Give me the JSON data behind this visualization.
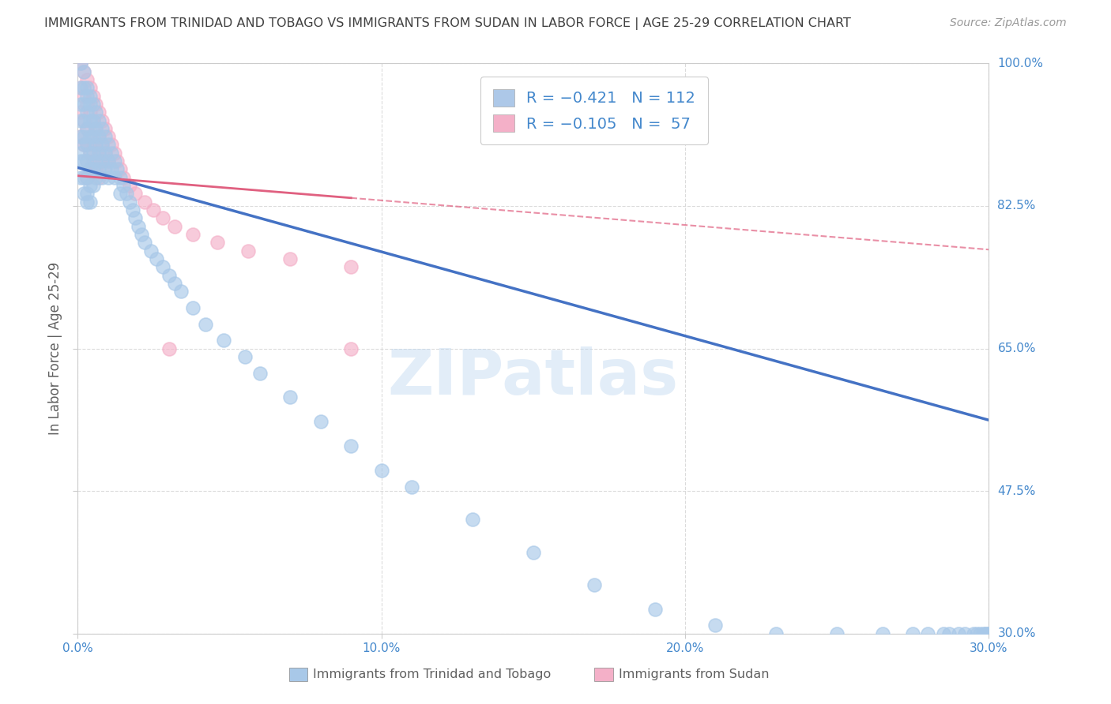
{
  "title": "IMMIGRANTS FROM TRINIDAD AND TOBAGO VS IMMIGRANTS FROM SUDAN IN LABOR FORCE | AGE 25-29 CORRELATION CHART",
  "source": "Source: ZipAtlas.com",
  "ylabel": "In Labor Force | Age 25-29",
  "xlim": [
    0.0,
    0.3
  ],
  "ylim": [
    0.3,
    1.0
  ],
  "xtick_labels": [
    "0.0%",
    "10.0%",
    "20.0%",
    "30.0%"
  ],
  "xtick_vals": [
    0.0,
    0.1,
    0.2,
    0.3
  ],
  "ytick_labels": [
    "100.0%",
    "82.5%",
    "65.0%",
    "47.5%",
    "30.0%"
  ],
  "ytick_vals": [
    1.0,
    0.825,
    0.65,
    0.475,
    0.3
  ],
  "legend1_label": "R = −0.421   N = 112",
  "legend2_label": "R = −0.105   N =  57",
  "legend1_color": "#adc8e8",
  "legend2_color": "#f4b0c8",
  "watermark": "ZIPatlas",
  "dot_alpha": 0.65,
  "trinidad_dot_color": "#a8c8e8",
  "sudan_dot_color": "#f4b0c8",
  "trend_blue": "#4472c4",
  "trend_pink": "#e06080",
  "background_color": "#ffffff",
  "grid_color": "#d8d8d8",
  "title_color": "#404040",
  "axis_label_color": "#606060",
  "tick_color": "#4488cc",
  "legend_text_color": "#4488cc",
  "trend_line_intercept_blue": 0.872,
  "trend_line_slope_blue": -1.033,
  "trend_line_intercept_pink": 0.862,
  "trend_line_slope_pink": -0.302,
  "trinidad_x": [
    0.001,
    0.001,
    0.001,
    0.001,
    0.001,
    0.001,
    0.001,
    0.001,
    0.002,
    0.002,
    0.002,
    0.002,
    0.002,
    0.002,
    0.002,
    0.002,
    0.002,
    0.003,
    0.003,
    0.003,
    0.003,
    0.003,
    0.003,
    0.003,
    0.003,
    0.003,
    0.004,
    0.004,
    0.004,
    0.004,
    0.004,
    0.004,
    0.004,
    0.004,
    0.005,
    0.005,
    0.005,
    0.005,
    0.005,
    0.005,
    0.006,
    0.006,
    0.006,
    0.006,
    0.006,
    0.007,
    0.007,
    0.007,
    0.007,
    0.008,
    0.008,
    0.008,
    0.008,
    0.009,
    0.009,
    0.009,
    0.01,
    0.01,
    0.01,
    0.011,
    0.011,
    0.012,
    0.012,
    0.013,
    0.014,
    0.014,
    0.015,
    0.016,
    0.017,
    0.018,
    0.019,
    0.02,
    0.021,
    0.022,
    0.024,
    0.026,
    0.028,
    0.03,
    0.032,
    0.034,
    0.038,
    0.042,
    0.048,
    0.055,
    0.06,
    0.07,
    0.08,
    0.09,
    0.1,
    0.11,
    0.13,
    0.15,
    0.17,
    0.19,
    0.21,
    0.23,
    0.25,
    0.265,
    0.275,
    0.28,
    0.285,
    0.287,
    0.29,
    0.292,
    0.295,
    0.296,
    0.297,
    0.298,
    0.299,
    0.299,
    0.3,
    0.3
  ],
  "trinidad_y": [
    1.0,
    0.97,
    0.95,
    0.93,
    0.91,
    0.89,
    0.88,
    0.86,
    0.99,
    0.97,
    0.95,
    0.93,
    0.91,
    0.9,
    0.88,
    0.86,
    0.84,
    0.97,
    0.96,
    0.94,
    0.92,
    0.9,
    0.88,
    0.86,
    0.84,
    0.83,
    0.96,
    0.95,
    0.93,
    0.91,
    0.89,
    0.87,
    0.85,
    0.83,
    0.95,
    0.93,
    0.91,
    0.89,
    0.87,
    0.85,
    0.94,
    0.92,
    0.9,
    0.88,
    0.86,
    0.93,
    0.91,
    0.89,
    0.87,
    0.92,
    0.9,
    0.88,
    0.86,
    0.91,
    0.89,
    0.87,
    0.9,
    0.88,
    0.86,
    0.89,
    0.87,
    0.88,
    0.86,
    0.87,
    0.86,
    0.84,
    0.85,
    0.84,
    0.83,
    0.82,
    0.81,
    0.8,
    0.79,
    0.78,
    0.77,
    0.76,
    0.75,
    0.74,
    0.73,
    0.72,
    0.7,
    0.68,
    0.66,
    0.64,
    0.62,
    0.59,
    0.56,
    0.53,
    0.5,
    0.48,
    0.44,
    0.4,
    0.36,
    0.33,
    0.31,
    0.3,
    0.3,
    0.3,
    0.3,
    0.3,
    0.3,
    0.3,
    0.3,
    0.3,
    0.3,
    0.3,
    0.3,
    0.3,
    0.3,
    0.3,
    0.3,
    0.3
  ],
  "sudan_x": [
    0.001,
    0.001,
    0.001,
    0.001,
    0.002,
    0.002,
    0.002,
    0.002,
    0.003,
    0.003,
    0.003,
    0.003,
    0.003,
    0.003,
    0.004,
    0.004,
    0.004,
    0.004,
    0.004,
    0.005,
    0.005,
    0.005,
    0.005,
    0.006,
    0.006,
    0.006,
    0.006,
    0.007,
    0.007,
    0.007,
    0.007,
    0.008,
    0.008,
    0.008,
    0.009,
    0.009,
    0.009,
    0.01,
    0.01,
    0.011,
    0.012,
    0.013,
    0.014,
    0.015,
    0.017,
    0.019,
    0.022,
    0.025,
    0.028,
    0.032,
    0.038,
    0.046,
    0.056,
    0.07,
    0.09,
    0.03,
    0.09
  ],
  "sudan_y": [
    1.0,
    0.97,
    0.94,
    0.91,
    0.99,
    0.96,
    0.93,
    0.9,
    0.98,
    0.95,
    0.92,
    0.9,
    0.88,
    0.86,
    0.97,
    0.94,
    0.91,
    0.89,
    0.87,
    0.96,
    0.93,
    0.9,
    0.88,
    0.95,
    0.92,
    0.9,
    0.87,
    0.94,
    0.91,
    0.89,
    0.86,
    0.93,
    0.9,
    0.88,
    0.92,
    0.89,
    0.87,
    0.91,
    0.88,
    0.9,
    0.89,
    0.88,
    0.87,
    0.86,
    0.85,
    0.84,
    0.83,
    0.82,
    0.81,
    0.8,
    0.79,
    0.78,
    0.77,
    0.76,
    0.75,
    0.65,
    0.65
  ]
}
